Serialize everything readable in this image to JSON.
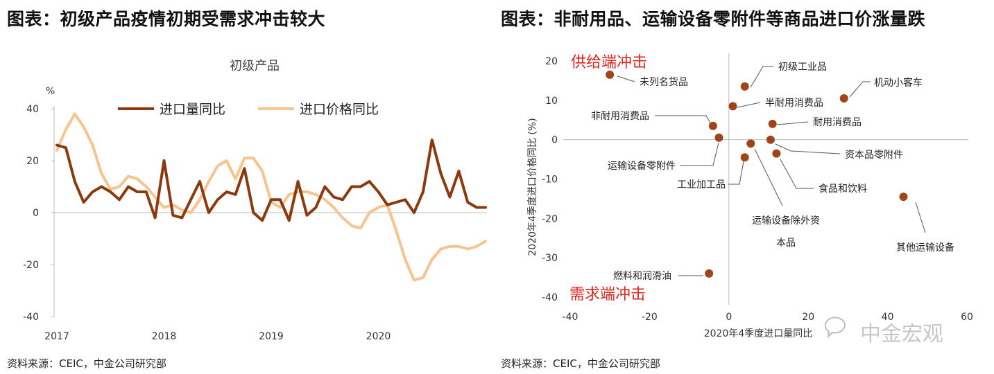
{
  "left": {
    "title": "图表：初级产品疫情初期受需求冲击较大",
    "source": "资料来源：CEIC，中金公司研究部"
  },
  "right": {
    "title": "图表：非耐用品、运输设备零附件等商品进口价涨量跌",
    "source": "资料来源：CEIC，中金公司研究部"
  },
  "watermark": "中金宏观",
  "colors": {
    "series1": "#8b3a0e",
    "series2": "#f5c48f",
    "point": "#a0451a",
    "red_label": "#e0251b"
  },
  "chart_data": [
    {
      "type": "line",
      "title": "初级产品",
      "ylabel": "%",
      "ylim": [
        -40,
        40
      ],
      "yticks": [
        40,
        20,
        0,
        -20,
        -40
      ],
      "xtick_labels": [
        "2017",
        "2018",
        "2019",
        "2020"
      ],
      "x_start": 2017.0,
      "x_step": 0.0833333,
      "legend": "top",
      "series": [
        {
          "name": "进口量同比",
          "values": [
            26,
            25,
            12,
            4,
            8,
            10,
            8,
            5,
            10,
            8,
            8,
            -2,
            20,
            -1,
            -2,
            5,
            12,
            0,
            5,
            8,
            7,
            17,
            0,
            -3,
            5,
            5,
            -3,
            12,
            -1,
            2,
            10,
            6,
            5,
            10,
            10,
            12,
            8,
            3,
            4,
            5,
            0,
            8,
            28,
            15,
            6,
            16,
            4,
            2,
            2
          ]
        },
        {
          "name": "进口价格同比",
          "values": [
            24,
            32,
            38,
            33,
            26,
            15,
            9,
            10,
            14,
            13,
            10,
            6,
            2,
            3,
            1,
            0,
            5,
            12,
            18,
            20,
            13,
            21,
            21,
            16,
            4,
            2,
            7,
            8,
            8,
            7,
            5,
            2,
            -2,
            -5,
            -6,
            0,
            2,
            3,
            -7,
            -18,
            -26,
            -25,
            -18,
            -14,
            -13,
            -13,
            -14,
            -13,
            -11
          ]
        }
      ]
    },
    {
      "type": "scatter",
      "xlabel": "2020年4季度进口量同比",
      "ylabel": "2020年4季度进口价格同比 (%)",
      "xlim": [
        -40,
        60
      ],
      "ylim": [
        -40,
        20
      ],
      "xticks": [
        -40,
        -20,
        0,
        20,
        40,
        60
      ],
      "yticks": [
        20,
        10,
        0,
        -10,
        -20,
        -30,
        -40
      ],
      "annotations": [
        "供给端冲击",
        "需求端冲击"
      ],
      "points": [
        {
          "label": "未列名货品",
          "x": -30,
          "y": 16.5
        },
        {
          "label": "初级工业品",
          "x": 4,
          "y": 13.5
        },
        {
          "label": "机动小客车",
          "x": 29,
          "y": 10.5
        },
        {
          "label": "半耐用消费品",
          "x": 1,
          "y": 8.5
        },
        {
          "label": "非耐用消费品",
          "x": -4,
          "y": 3.5
        },
        {
          "label": "耐用消费品",
          "x": 11,
          "y": 4
        },
        {
          "label": "运输设备零附件",
          "x": -2.5,
          "y": 0.5
        },
        {
          "label": "资本品零附件",
          "x": 10.5,
          "y": 0
        },
        {
          "label": "工业加工品",
          "x": 4,
          "y": -4.5
        },
        {
          "label": "运输设备除外资本品",
          "x": 5.5,
          "y": -1
        },
        {
          "label": "食品和饮料",
          "x": 12,
          "y": -3.5
        },
        {
          "label": "其他运输设备",
          "x": 44,
          "y": -14.5
        },
        {
          "label": "燃料和润滑油",
          "x": -5,
          "y": -34
        }
      ]
    }
  ]
}
